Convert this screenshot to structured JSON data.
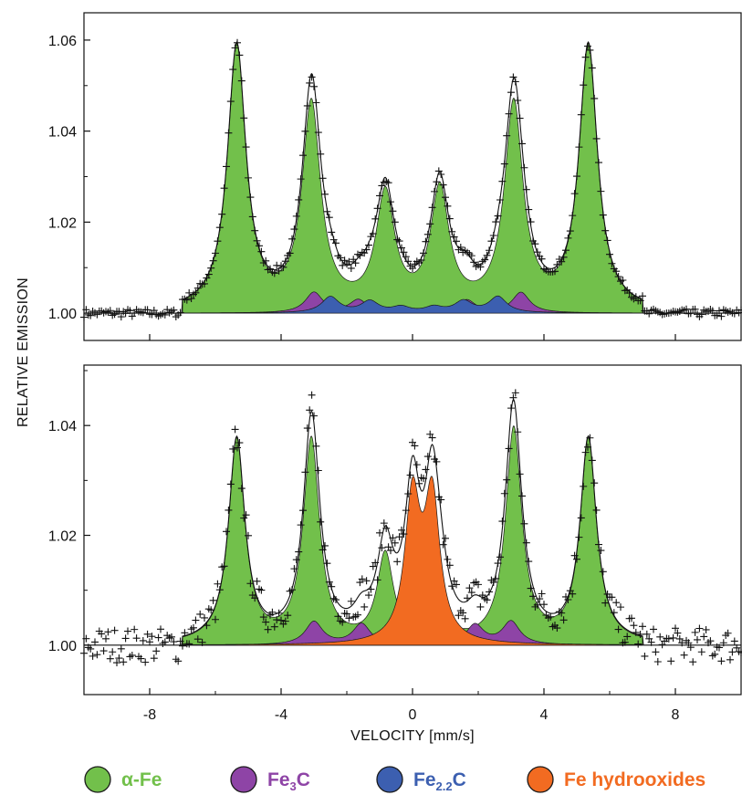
{
  "chart_data": {
    "type": "line",
    "xlabel": "VELOCITY [mm/s]",
    "ylabel": "RELATIVE EMISSION",
    "xlim": [
      -10,
      10
    ],
    "x_ticks": [
      -8,
      -4,
      0,
      4,
      8
    ],
    "x_tick_labels": [
      "-8",
      "-4",
      "0",
      "4",
      "8"
    ],
    "colors": {
      "alpha_fe": "#72c04b",
      "fe3c": "#8e44a6",
      "fe22c": "#3c5fb0",
      "fe_hydroxides": "#f26b21"
    },
    "legend": [
      {
        "key": "alpha_fe",
        "text": "α-Fe",
        "sub": "",
        "tail": ""
      },
      {
        "key": "fe3c",
        "text": "Fe",
        "sub": "3",
        "tail": "C"
      },
      {
        "key": "fe22c",
        "text": "Fe",
        "sub": "2.2",
        "tail": "C"
      },
      {
        "key": "fe_hydroxides",
        "text": "Fe hydrooxides",
        "sub": "",
        "tail": ""
      }
    ],
    "panels": [
      {
        "ylim": [
          0.994,
          1.066
        ],
        "y_ticks": [
          1.0,
          1.02,
          1.04,
          1.06
        ],
        "y_tick_labels": [
          "1.00",
          "1.02",
          "1.04",
          "1.06"
        ],
        "components": [
          {
            "key": "alpha_fe",
            "positions": [
              -5.35,
              -3.08,
              -0.83,
              0.83,
              3.08,
              5.35
            ],
            "amplitudes": [
              0.058,
              0.045,
              0.025,
              0.026,
              0.045,
              0.058
            ],
            "width": 0.34
          },
          {
            "key": "fe3c",
            "positions": [
              -3.0,
              -1.65,
              1.65,
              3.3
            ],
            "amplitudes": [
              0.0045,
              0.0028,
              0.0028,
              0.0045
            ],
            "width": 0.32
          },
          {
            "key": "fe22c",
            "positions": [
              -2.5,
              -1.3,
              -0.35,
              0.65,
              1.55,
              2.6
            ],
            "amplitudes": [
              0.0035,
              0.0025,
              0.0012,
              0.0012,
              0.0025,
              0.0035
            ],
            "width": 0.32
          }
        ]
      },
      {
        "ylim": [
          0.991,
          1.051
        ],
        "y_ticks": [
          1.0,
          1.02,
          1.04
        ],
        "y_tick_labels": [
          "1.00",
          "1.02",
          "1.04"
        ],
        "components": [
          {
            "key": "alpha_fe",
            "positions": [
              -5.35,
              -3.08,
              -0.83,
              0.83,
              3.08,
              5.35
            ],
            "amplitudes": [
              0.037,
              0.037,
              0.016,
              0.006,
              0.039,
              0.037
            ],
            "width": 0.3
          },
          {
            "key": "fe3c",
            "positions": [
              -3.0,
              -1.55,
              1.9,
              3.0
            ],
            "amplitudes": [
              0.0042,
              0.0038,
              0.0036,
              0.0042
            ],
            "width": 0.32
          },
          {
            "key": "fe_hydroxides",
            "positions": [
              0.0,
              0.6
            ],
            "amplitudes": [
              0.026,
              0.026
            ],
            "width": 0.28
          }
        ]
      }
    ]
  }
}
